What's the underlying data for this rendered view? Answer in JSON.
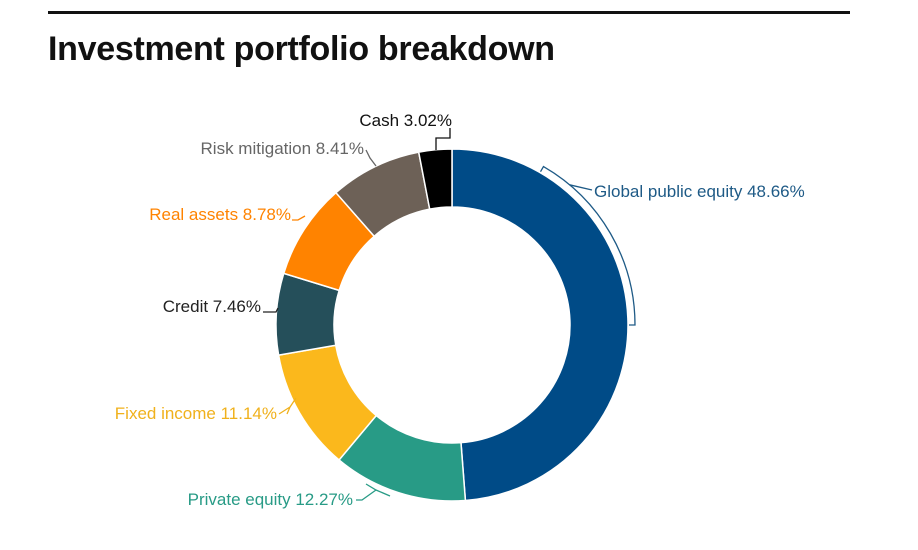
{
  "title": "Investment portfolio breakdown",
  "chart_data": {
    "type": "pie",
    "donut": true,
    "title": "Investment portfolio breakdown",
    "unit": "%",
    "slices": [
      {
        "label": "Global public equity",
        "value": 48.66,
        "display": "48.66%",
        "color": "#004b87"
      },
      {
        "label": "Private equity",
        "value": 12.27,
        "display": "12.27%",
        "color": "#289b86"
      },
      {
        "label": "Fixed income",
        "value": 11.14,
        "display": "11.14%",
        "color": "#fbb81c"
      },
      {
        "label": "Credit",
        "value": 7.46,
        "display": "7.46%",
        "color": "#254f5a"
      },
      {
        "label": "Real assets",
        "value": 8.78,
        "display": "8.78%",
        "color": "#ff8300"
      },
      {
        "label": "Risk mitigation",
        "value": 8.41,
        "display": "8.41%",
        "color": "#6d6157"
      },
      {
        "label": "Cash",
        "value": 3.02,
        "display": "3.02%",
        "color": "#000000"
      }
    ],
    "label_colors": {
      "Global public equity": "#1e5a86",
      "Private equity": "#289b86",
      "Fixed income": "#f0b11c",
      "Credit": "#222222",
      "Real assets": "#ff8300",
      "Risk mitigation": "#666666",
      "Cash": "#111111"
    },
    "legend": "none"
  }
}
